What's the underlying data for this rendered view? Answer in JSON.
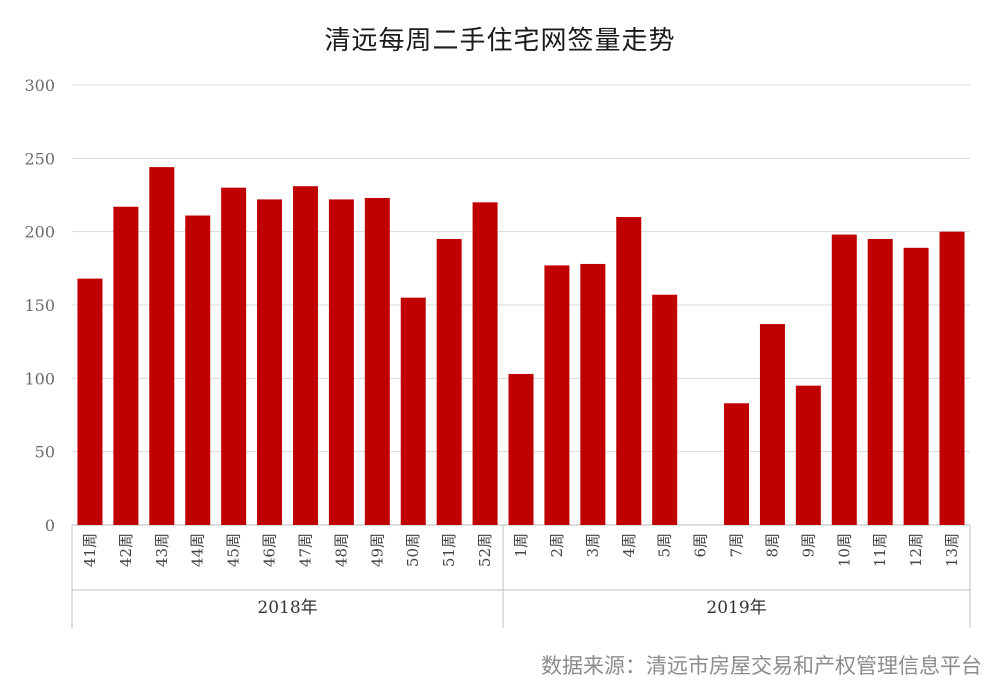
{
  "chart_data": {
    "type": "bar",
    "title": "清远每周二手住宅网签量走势",
    "xlabel": "",
    "ylabel": "",
    "ylim": [
      0,
      300
    ],
    "yticks": [
      0,
      50,
      100,
      150,
      200,
      250,
      300
    ],
    "grid": true,
    "legend": "none",
    "bar_color": "#c00000",
    "categories": [
      "41周",
      "42周",
      "43周",
      "44周",
      "45周",
      "46周",
      "47周",
      "48周",
      "49周",
      "50周",
      "51周",
      "52周",
      "1周",
      "2周",
      "3周",
      "4周",
      "5周",
      "6周",
      "7周",
      "8周",
      "9周",
      "10周",
      "11周",
      "12周",
      "13周"
    ],
    "groups": [
      {
        "label": "2018年",
        "count": 12
      },
      {
        "label": "2019年",
        "count": 13
      }
    ],
    "values": [
      168,
      217,
      244,
      211,
      230,
      222,
      231,
      222,
      223,
      155,
      195,
      220,
      103,
      177,
      178,
      210,
      157,
      0,
      83,
      137,
      95,
      198,
      195,
      189,
      200
    ]
  },
  "source": "数据来源：清远市房屋交易和产权管理信息平台"
}
